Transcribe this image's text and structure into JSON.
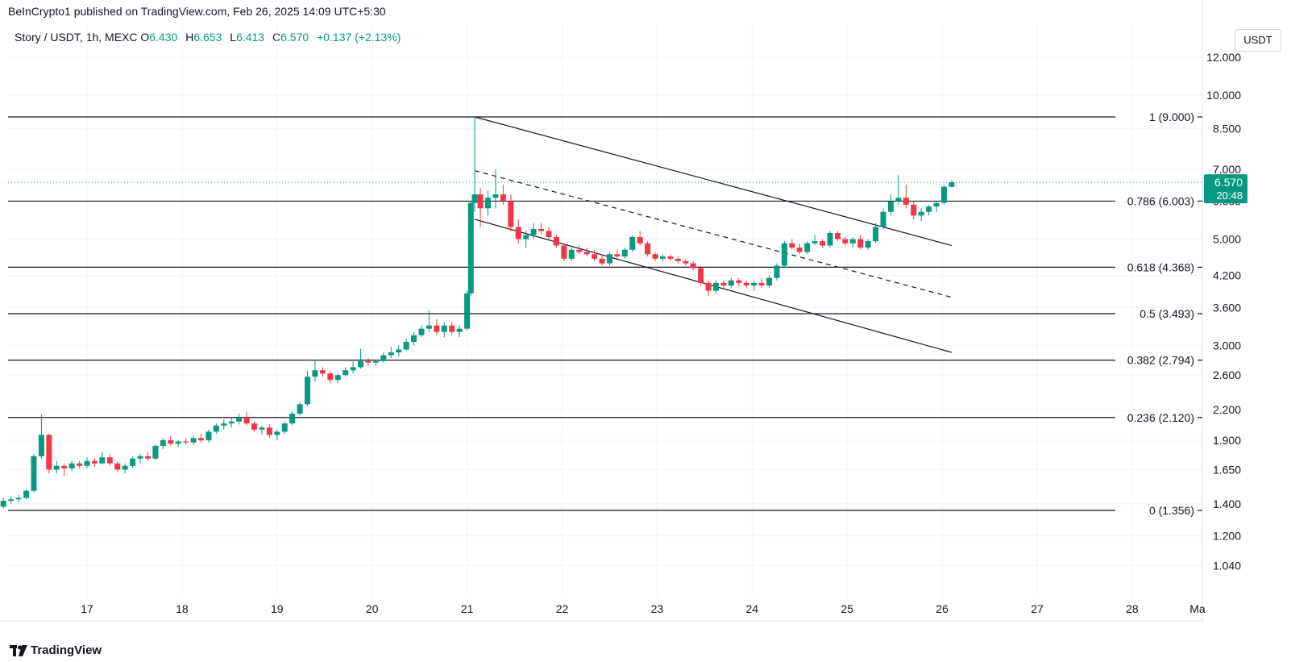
{
  "caption": "BeInCrypto1 published on TradingView.com, Feb 26, 2025 14:09 UTC+5:30",
  "legend": {
    "symbol": "Story / USDT, 1h, MEXC",
    "o_label": "O",
    "o": "6.430",
    "h_label": "H",
    "h": "6.653",
    "l_label": "L",
    "l": "6.413",
    "c_label": "C",
    "c": "6.570",
    "change": "+0.137 (+2.13%)"
  },
  "currency": "USDT",
  "footer": {
    "brand": "TradingView"
  },
  "colors": {
    "up": "#089981",
    "down": "#f23645",
    "grid": "#f0f3fa",
    "line": "#131722",
    "price_tag": "#089981"
  },
  "chart_data": {
    "type": "candlestick",
    "scale": "log",
    "ylim": [
      0.93,
      13.2
    ],
    "y_ticks": [
      12.0,
      10.0,
      8.5,
      7.0,
      6.0,
      5.0,
      4.2,
      3.6,
      3.0,
      2.6,
      2.2,
      1.9,
      1.65,
      1.4,
      1.2,
      1.04
    ],
    "y_tick_labels": [
      "12.000",
      "10.000",
      "8.500",
      "7.000",
      "6.000",
      "5.000",
      "4.200",
      "3.600",
      "3.000",
      "2.600",
      "2.200",
      "1.900",
      "1.650",
      "1.400",
      "1.200",
      "1.040"
    ],
    "x_day_range": [
      16.05,
      29.0
    ],
    "x_ticks": [
      {
        "day": 17,
        "label": "17"
      },
      {
        "day": 18,
        "label": "18"
      },
      {
        "day": 19,
        "label": "19"
      },
      {
        "day": 20,
        "label": "20"
      },
      {
        "day": 21,
        "label": "21"
      },
      {
        "day": 22,
        "label": "22"
      },
      {
        "day": 23,
        "label": "23"
      },
      {
        "day": 24,
        "label": "24"
      },
      {
        "day": 25,
        "label": "25"
      },
      {
        "day": 26,
        "label": "26"
      },
      {
        "day": 27,
        "label": "27"
      },
      {
        "day": 28,
        "label": "28"
      },
      {
        "day": 29,
        "label": "Ma"
      }
    ],
    "fib_levels": [
      {
        "value": 9.0,
        "label": "1 (9.000)"
      },
      {
        "value": 6.003,
        "label": "0.786 (6.003)"
      },
      {
        "value": 4.368,
        "label": "0.618 (4.368)"
      },
      {
        "value": 3.493,
        "label": "0.5 (3.493)"
      },
      {
        "value": 2.794,
        "label": "0.382 (2.794)"
      },
      {
        "value": 2.12,
        "label": "0.236 (2.120)"
      },
      {
        "value": 1.356,
        "label": "0 (1.356)"
      }
    ],
    "current_price": {
      "value": 6.57,
      "label": "6.570",
      "countdown": "20:48"
    },
    "channel": {
      "upper": [
        [
          21.08,
          9.0
        ],
        [
          26.1,
          4.85
        ]
      ],
      "middle_dashed": [
        [
          21.08,
          6.95
        ],
        [
          26.1,
          3.78
        ]
      ],
      "lower": [
        [
          21.08,
          5.5
        ],
        [
          26.1,
          2.9
        ]
      ]
    },
    "candles": [
      [
        16.05,
        1.42,
        1.43,
        1.36,
        1.38
      ],
      [
        16.12,
        1.38,
        1.44,
        1.37,
        1.42
      ],
      [
        16.2,
        1.42,
        1.45,
        1.4,
        1.43
      ],
      [
        16.28,
        1.43,
        1.46,
        1.41,
        1.44
      ],
      [
        16.36,
        1.44,
        1.5,
        1.43,
        1.49
      ],
      [
        16.44,
        1.49,
        1.78,
        1.48,
        1.76
      ],
      [
        16.52,
        1.76,
        2.15,
        1.74,
        1.95
      ],
      [
        16.6,
        1.95,
        1.96,
        1.62,
        1.65
      ],
      [
        16.68,
        1.65,
        1.72,
        1.62,
        1.68
      ],
      [
        16.76,
        1.68,
        1.7,
        1.6,
        1.66
      ],
      [
        16.84,
        1.66,
        1.72,
        1.64,
        1.7
      ],
      [
        16.92,
        1.7,
        1.72,
        1.66,
        1.68
      ],
      [
        17.0,
        1.68,
        1.75,
        1.66,
        1.72
      ],
      [
        17.08,
        1.72,
        1.74,
        1.67,
        1.7
      ],
      [
        17.16,
        1.7,
        1.8,
        1.69,
        1.75
      ],
      [
        17.24,
        1.75,
        1.78,
        1.68,
        1.7
      ],
      [
        17.32,
        1.7,
        1.72,
        1.63,
        1.65
      ],
      [
        17.4,
        1.65,
        1.7,
        1.62,
        1.68
      ],
      [
        17.48,
        1.68,
        1.76,
        1.66,
        1.74
      ],
      [
        17.56,
        1.74,
        1.78,
        1.7,
        1.76
      ],
      [
        17.64,
        1.76,
        1.8,
        1.72,
        1.74
      ],
      [
        17.72,
        1.74,
        1.86,
        1.73,
        1.85
      ],
      [
        17.8,
        1.85,
        1.92,
        1.82,
        1.9
      ],
      [
        17.88,
        1.9,
        1.94,
        1.85,
        1.87
      ],
      [
        17.96,
        1.87,
        1.9,
        1.84,
        1.89
      ],
      [
        18.04,
        1.89,
        1.92,
        1.86,
        1.88
      ],
      [
        18.12,
        1.88,
        1.94,
        1.86,
        1.92
      ],
      [
        18.2,
        1.92,
        1.96,
        1.88,
        1.9
      ],
      [
        18.28,
        1.9,
        2.0,
        1.88,
        1.98
      ],
      [
        18.36,
        1.98,
        2.06,
        1.96,
        2.04
      ],
      [
        18.44,
        2.04,
        2.1,
        2.0,
        2.06
      ],
      [
        18.52,
        2.06,
        2.12,
        2.02,
        2.08
      ],
      [
        18.6,
        2.08,
        2.16,
        2.05,
        2.12
      ],
      [
        18.68,
        2.12,
        2.18,
        2.04,
        2.06
      ],
      [
        18.76,
        2.06,
        2.08,
        1.98,
        2.0
      ],
      [
        18.84,
        2.0,
        2.04,
        1.95,
        2.02
      ],
      [
        18.92,
        2.02,
        2.05,
        1.92,
        1.95
      ],
      [
        19.0,
        1.95,
        2.0,
        1.9,
        1.98
      ],
      [
        19.08,
        1.98,
        2.08,
        1.96,
        2.06
      ],
      [
        19.16,
        2.06,
        2.18,
        2.04,
        2.16
      ],
      [
        19.24,
        2.16,
        2.28,
        2.14,
        2.26
      ],
      [
        19.32,
        2.26,
        2.65,
        2.24,
        2.58
      ],
      [
        19.4,
        2.58,
        2.8,
        2.52,
        2.66
      ],
      [
        19.48,
        2.66,
        2.7,
        2.58,
        2.62
      ],
      [
        19.56,
        2.62,
        2.64,
        2.5,
        2.54
      ],
      [
        19.64,
        2.54,
        2.62,
        2.5,
        2.6
      ],
      [
        19.72,
        2.6,
        2.7,
        2.58,
        2.66
      ],
      [
        19.8,
        2.66,
        2.78,
        2.62,
        2.7
      ],
      [
        19.88,
        2.7,
        2.95,
        2.68,
        2.78
      ],
      [
        19.96,
        2.78,
        2.82,
        2.72,
        2.76
      ],
      [
        20.04,
        2.76,
        2.8,
        2.72,
        2.78
      ],
      [
        20.12,
        2.78,
        2.9,
        2.76,
        2.86
      ],
      [
        20.2,
        2.86,
        2.98,
        2.82,
        2.9
      ],
      [
        20.28,
        2.9,
        3.0,
        2.84,
        2.94
      ],
      [
        20.36,
        2.94,
        3.1,
        2.92,
        3.05
      ],
      [
        20.44,
        3.05,
        3.2,
        3.0,
        3.15
      ],
      [
        20.52,
        3.15,
        3.3,
        3.12,
        3.25
      ],
      [
        20.6,
        3.25,
        3.55,
        3.2,
        3.3
      ],
      [
        20.68,
        3.3,
        3.4,
        3.15,
        3.2
      ],
      [
        20.76,
        3.2,
        3.35,
        3.12,
        3.3
      ],
      [
        20.84,
        3.3,
        3.36,
        3.15,
        3.2
      ],
      [
        20.92,
        3.2,
        3.3,
        3.12,
        3.25
      ],
      [
        21.0,
        3.25,
        3.9,
        3.22,
        3.85
      ],
      [
        21.04,
        3.85,
        6.0,
        3.8,
        5.95
      ],
      [
        21.08,
        5.95,
        9.0,
        5.7,
        6.2
      ],
      [
        21.14,
        6.2,
        6.4,
        5.3,
        5.8
      ],
      [
        21.22,
        5.8,
        6.3,
        5.6,
        6.1
      ],
      [
        21.3,
        6.1,
        7.0,
        5.8,
        6.2
      ],
      [
        21.38,
        6.2,
        6.5,
        5.9,
        6.0
      ],
      [
        21.46,
        6.0,
        6.2,
        5.2,
        5.3
      ],
      [
        21.54,
        5.3,
        5.5,
        4.9,
        5.0
      ],
      [
        21.62,
        5.0,
        5.2,
        4.8,
        5.1
      ],
      [
        21.7,
        5.1,
        5.4,
        5.0,
        5.25
      ],
      [
        21.78,
        5.25,
        5.4,
        5.1,
        5.2
      ],
      [
        21.86,
        5.2,
        5.3,
        5.0,
        5.05
      ],
      [
        21.94,
        5.05,
        5.1,
        4.8,
        4.85
      ],
      [
        22.02,
        4.85,
        4.9,
        4.5,
        4.55
      ],
      [
        22.1,
        4.55,
        4.8,
        4.5,
        4.75
      ],
      [
        22.18,
        4.75,
        4.85,
        4.65,
        4.7
      ],
      [
        22.26,
        4.7,
        4.8,
        4.6,
        4.65
      ],
      [
        22.34,
        4.65,
        4.75,
        4.5,
        4.55
      ],
      [
        22.42,
        4.55,
        4.65,
        4.4,
        4.45
      ],
      [
        22.5,
        4.45,
        4.7,
        4.4,
        4.65
      ],
      [
        22.58,
        4.65,
        4.75,
        4.55,
        4.6
      ],
      [
        22.66,
        4.6,
        4.8,
        4.55,
        4.75
      ],
      [
        22.74,
        4.75,
        5.1,
        4.7,
        5.05
      ],
      [
        22.82,
        5.05,
        5.2,
        4.85,
        4.9
      ],
      [
        22.9,
        4.9,
        4.95,
        4.6,
        4.65
      ],
      [
        22.98,
        4.65,
        4.7,
        4.5,
        4.55
      ],
      [
        23.06,
        4.55,
        4.65,
        4.5,
        4.6
      ],
      [
        23.14,
        4.6,
        4.65,
        4.5,
        4.55
      ],
      [
        23.22,
        4.55,
        4.6,
        4.45,
        4.5
      ],
      [
        23.3,
        4.5,
        4.55,
        4.4,
        4.45
      ],
      [
        23.38,
        4.45,
        4.5,
        4.3,
        4.35
      ],
      [
        23.46,
        4.35,
        4.4,
        4.0,
        4.05
      ],
      [
        23.54,
        4.05,
        4.1,
        3.8,
        3.9
      ],
      [
        23.62,
        3.9,
        4.1,
        3.85,
        4.05
      ],
      [
        23.7,
        4.05,
        4.1,
        3.95,
        4.0
      ],
      [
        23.78,
        4.0,
        4.15,
        3.95,
        4.1
      ],
      [
        23.86,
        4.1,
        4.15,
        4.0,
        4.05
      ],
      [
        23.94,
        4.05,
        4.1,
        3.95,
        4.0
      ],
      [
        24.02,
        4.0,
        4.1,
        3.9,
        4.05
      ],
      [
        24.1,
        4.05,
        4.15,
        3.95,
        4.0
      ],
      [
        24.18,
        4.0,
        4.2,
        3.95,
        4.15
      ],
      [
        24.26,
        4.15,
        4.45,
        4.1,
        4.4
      ],
      [
        24.34,
        4.4,
        4.95,
        4.35,
        4.9
      ],
      [
        24.42,
        4.9,
        5.0,
        4.75,
        4.8
      ],
      [
        24.5,
        4.8,
        4.9,
        4.65,
        4.7
      ],
      [
        24.58,
        4.7,
        4.95,
        4.65,
        4.9
      ],
      [
        24.66,
        4.9,
        5.1,
        4.85,
        4.95
      ],
      [
        24.74,
        4.95,
        5.0,
        4.8,
        4.85
      ],
      [
        24.82,
        4.85,
        5.2,
        4.8,
        5.15
      ],
      [
        24.9,
        5.15,
        5.2,
        4.95,
        5.0
      ],
      [
        24.98,
        5.0,
        5.05,
        4.85,
        4.9
      ],
      [
        25.06,
        4.9,
        5.05,
        4.8,
        5.0
      ],
      [
        25.14,
        5.0,
        5.1,
        4.75,
        4.8
      ],
      [
        25.22,
        4.8,
        5.0,
        4.75,
        4.95
      ],
      [
        25.3,
        4.95,
        5.4,
        4.9,
        5.3
      ],
      [
        25.38,
        5.3,
        5.8,
        5.25,
        5.7
      ],
      [
        25.46,
        5.7,
        6.2,
        5.6,
        6.0
      ],
      [
        25.54,
        6.0,
        6.8,
        5.9,
        6.1
      ],
      [
        25.62,
        6.1,
        6.5,
        5.8,
        5.9
      ],
      [
        25.7,
        5.9,
        6.0,
        5.5,
        5.6
      ],
      [
        25.78,
        5.6,
        5.8,
        5.45,
        5.7
      ],
      [
        25.86,
        5.7,
        5.9,
        5.6,
        5.85
      ],
      [
        25.94,
        5.85,
        6.0,
        5.7,
        5.95
      ],
      [
        26.02,
        5.95,
        6.5,
        5.9,
        6.43
      ],
      [
        26.1,
        6.43,
        6.653,
        6.413,
        6.57
      ]
    ]
  }
}
